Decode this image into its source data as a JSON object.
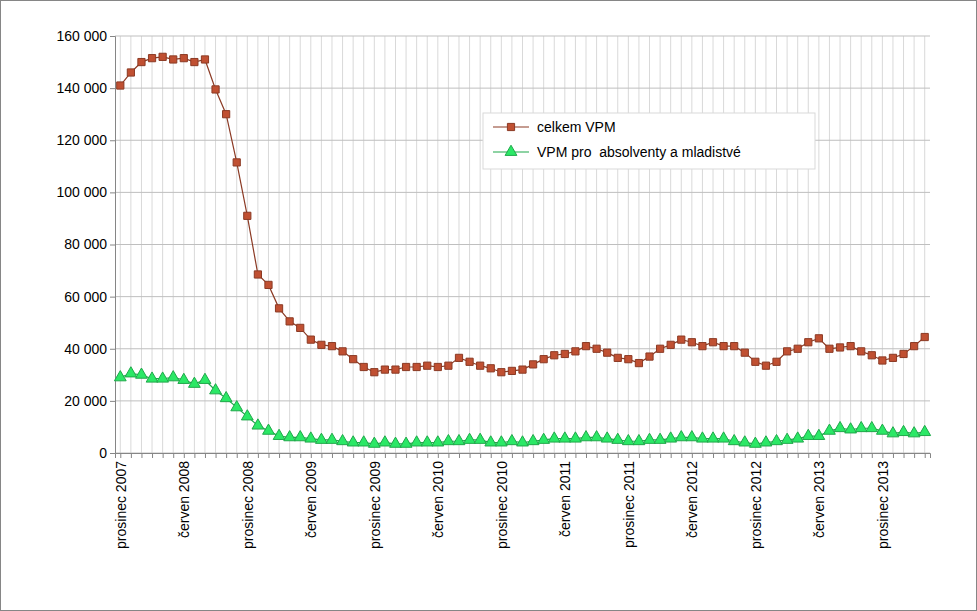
{
  "chart_data": {
    "type": "line",
    "categories": [
      "prosinec 2007",
      null,
      null,
      null,
      null,
      null,
      "červen 2008",
      null,
      null,
      null,
      null,
      null,
      "prosinec 2008",
      null,
      null,
      null,
      null,
      null,
      "červen 2009",
      null,
      null,
      null,
      null,
      null,
      "prosinec 2009",
      null,
      null,
      null,
      null,
      null,
      "červen 2010",
      null,
      null,
      null,
      null,
      null,
      "prosinec 2010",
      null,
      null,
      null,
      null,
      null,
      "červen 2011",
      null,
      null,
      null,
      null,
      null,
      "prosinec 2011",
      null,
      null,
      null,
      null,
      null,
      "červen 2012",
      null,
      null,
      null,
      null,
      null,
      "prosinec 2012",
      null,
      null,
      null,
      null,
      null,
      "červen 2013",
      null,
      null,
      null,
      null,
      null,
      "prosinec 2013",
      null,
      null,
      null,
      null
    ],
    "series": [
      {
        "name": "celkem VPM",
        "color": "#8b3a24",
        "marker": "square",
        "values": [
          141000,
          146000,
          150000,
          151500,
          152000,
          151000,
          151500,
          150000,
          151000,
          139500,
          130000,
          111500,
          91000,
          68500,
          64500,
          55500,
          50500,
          48000,
          43500,
          41500,
          41000,
          39000,
          36000,
          33000,
          31000,
          32000,
          32000,
          33000,
          33000,
          33500,
          33000,
          33500,
          36500,
          35000,
          33500,
          32500,
          31000,
          31500,
          32000,
          34000,
          36000,
          37500,
          38000,
          39000,
          41000,
          40000,
          38500,
          36500,
          36000,
          34500,
          37000,
          40000,
          41500,
          43500,
          42500,
          41000,
          42500,
          41000,
          41000,
          38500,
          35000,
          33500,
          35000,
          39000,
          40000,
          42500,
          44000,
          40000,
          40500,
          41000,
          39000,
          37500,
          35500,
          36500,
          38000,
          41000,
          44500
        ]
      },
      {
        "name": "VPM pro  absolventy a mladistvé",
        "color": "#1fa84a",
        "marker": "triangle",
        "values": [
          29000,
          30500,
          30000,
          28500,
          28500,
          29000,
          28000,
          26500,
          28000,
          24000,
          21000,
          17500,
          14000,
          10500,
          8500,
          6500,
          6000,
          6000,
          5500,
          5000,
          5000,
          4500,
          4000,
          4000,
          3500,
          4000,
          3500,
          3500,
          4000,
          4000,
          4000,
          4500,
          4500,
          5000,
          5000,
          4000,
          4000,
          4500,
          4000,
          4500,
          5000,
          5500,
          5500,
          5500,
          6000,
          6000,
          5500,
          5000,
          4500,
          4500,
          5000,
          5000,
          5500,
          6000,
          6000,
          5500,
          5500,
          5500,
          4500,
          4000,
          3500,
          4000,
          4500,
          5000,
          5500,
          6500,
          6500,
          8500,
          9500,
          9000,
          9500,
          9500,
          8500,
          7500,
          8000,
          7500,
          8000
        ]
      }
    ],
    "ylim": [
      0,
      160000
    ],
    "yticks": [
      0,
      {
        "value": 20000,
        "label": "20 000"
      },
      {
        "value": 40000,
        "label": "40 000"
      },
      {
        "value": 60000,
        "label": "60 000"
      },
      {
        "value": 80000,
        "label": "80 000"
      },
      {
        "value": 100000,
        "label": "100 000"
      },
      {
        "value": 120000,
        "label": "120 000"
      },
      {
        "value": 140000,
        "label": "140 000"
      },
      {
        "value": 160000,
        "label": "160 000"
      }
    ],
    "grid": true,
    "legend": "upper right"
  }
}
